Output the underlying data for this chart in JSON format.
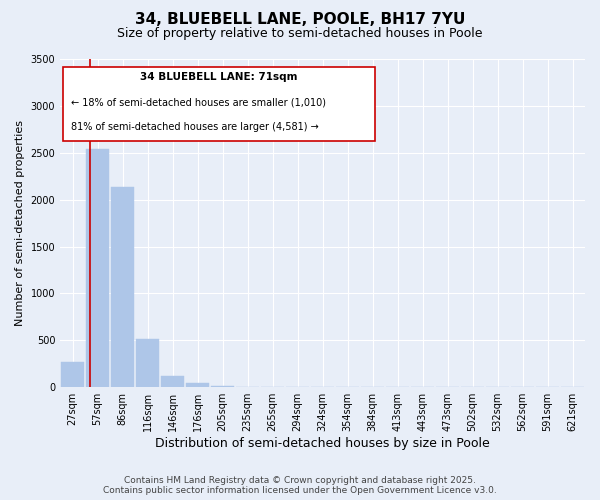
{
  "title": "34, BLUEBELL LANE, POOLE, BH17 7YU",
  "subtitle": "Size of property relative to semi-detached houses in Poole",
  "xlabel": "Distribution of semi-detached houses by size in Poole",
  "ylabel": "Number of semi-detached properties",
  "categories": [
    "27sqm",
    "57sqm",
    "86sqm",
    "116sqm",
    "146sqm",
    "176sqm",
    "205sqm",
    "235sqm",
    "265sqm",
    "294sqm",
    "324sqm",
    "354sqm",
    "384sqm",
    "413sqm",
    "443sqm",
    "473sqm",
    "502sqm",
    "532sqm",
    "562sqm",
    "591sqm",
    "621sqm"
  ],
  "values": [
    270,
    2540,
    2130,
    510,
    120,
    50,
    10,
    5,
    0,
    0,
    0,
    0,
    0,
    0,
    0,
    0,
    0,
    0,
    0,
    0,
    0
  ],
  "bar_color": "#aec6e8",
  "bar_edge_color": "#aec6e8",
  "marker_bin_index": 1,
  "marker_label": "34 BLUEBELL LANE: 71sqm",
  "marker_line_color": "#cc0000",
  "annotation_line1": "← 18% of semi-detached houses are smaller (1,010)",
  "annotation_line2": "81% of semi-detached houses are larger (4,581) →",
  "annotation_box_color": "#cc0000",
  "ylim": [
    0,
    3500
  ],
  "yticks": [
    0,
    500,
    1000,
    1500,
    2000,
    2500,
    3000,
    3500
  ],
  "background_color": "#e8eef8",
  "plot_bg_color": "#e8eef8",
  "footer_line1": "Contains HM Land Registry data © Crown copyright and database right 2025.",
  "footer_line2": "Contains public sector information licensed under the Open Government Licence v3.0.",
  "title_fontsize": 11,
  "subtitle_fontsize": 9,
  "xlabel_fontsize": 9,
  "ylabel_fontsize": 8,
  "tick_fontsize": 7,
  "footer_fontsize": 6.5,
  "annot_fontsize": 7.5
}
